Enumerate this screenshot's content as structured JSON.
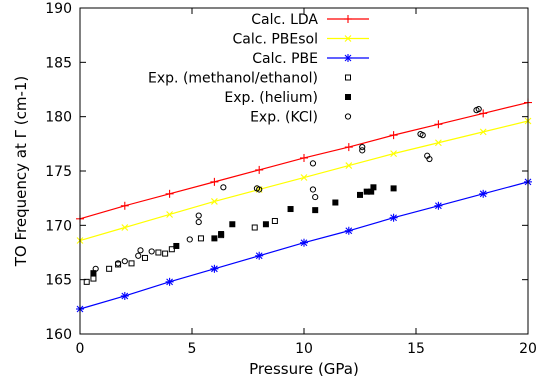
{
  "chart_data": {
    "type": "scatter",
    "xlabel": "Pressure (GPa)",
    "ylabel": "TO Frequency at Γ (cm-1)",
    "xlim": [
      0,
      20
    ],
    "ylim": [
      160,
      190
    ],
    "xticks": [
      0,
      5,
      10,
      15,
      20
    ],
    "yticks": [
      160,
      165,
      170,
      175,
      180,
      185,
      190
    ],
    "grid": false,
    "legend_position": "top-center",
    "series": [
      {
        "name": "Calc. LDA",
        "kind": "line",
        "marker": "plus",
        "color": "#ff0000",
        "x": [
          0,
          2,
          4,
          6,
          8,
          10,
          12,
          14,
          16,
          18,
          20
        ],
        "y": [
          170.6,
          171.8,
          172.9,
          174.0,
          175.1,
          176.2,
          177.2,
          178.3,
          179.3,
          180.3,
          181.3
        ]
      },
      {
        "name": "Calc. PBEsol",
        "kind": "line",
        "marker": "cross",
        "color": "#ffff00",
        "x": [
          0,
          2,
          4,
          6,
          8,
          10,
          12,
          14,
          16,
          18,
          20
        ],
        "y": [
          168.6,
          169.8,
          171.0,
          172.2,
          173.3,
          174.4,
          175.5,
          176.6,
          177.6,
          178.6,
          179.6
        ]
      },
      {
        "name": "Calc. PBE",
        "kind": "line",
        "marker": "star",
        "color": "#0000ff",
        "x": [
          0,
          2,
          4,
          6,
          8,
          10,
          12,
          14,
          16,
          18,
          20
        ],
        "y": [
          162.3,
          163.5,
          164.8,
          166.0,
          167.2,
          168.4,
          169.5,
          170.7,
          171.8,
          172.9,
          174.0
        ]
      },
      {
        "name": "Exp. (methanol/ethanol)",
        "kind": "points",
        "marker": "open-square",
        "color": "#000000",
        "x": [
          0.3,
          0.6,
          1.3,
          1.7,
          2.3,
          2.9,
          3.5,
          3.8,
          4.1,
          5.4,
          6.3,
          7.8,
          8.7
        ],
        "y": [
          164.8,
          165.1,
          166.0,
          166.4,
          166.5,
          167.0,
          167.5,
          167.4,
          167.8,
          168.8,
          169.1,
          169.8,
          170.4
        ]
      },
      {
        "name": "Exp. (helium)",
        "kind": "points",
        "marker": "filled-square",
        "color": "#000000",
        "x": [
          0.6,
          4.3,
          6.0,
          6.3,
          6.8,
          8.3,
          9.4,
          10.5,
          11.4,
          12.5,
          12.8,
          13.0,
          13.1,
          14.0
        ],
        "y": [
          165.6,
          168.1,
          168.8,
          169.2,
          170.1,
          170.1,
          171.5,
          171.4,
          172.1,
          172.8,
          173.1,
          173.1,
          173.5,
          173.4
        ]
      },
      {
        "name": "Exp. (KCl)",
        "kind": "points",
        "marker": "open-circle",
        "color": "#000000",
        "x": [
          0.7,
          1.7,
          2.0,
          2.6,
          2.7,
          3.2,
          4.9,
          5.3,
          5.3,
          6.4,
          7.9,
          8.0,
          10.4,
          10.4,
          10.5,
          12.6,
          12.6,
          15.2,
          15.3,
          15.5,
          15.6,
          17.7,
          17.8
        ],
        "y": [
          166.0,
          166.5,
          166.7,
          167.2,
          167.7,
          167.6,
          168.7,
          170.3,
          170.9,
          173.5,
          173.4,
          173.3,
          175.7,
          173.3,
          172.6,
          176.9,
          177.2,
          178.4,
          178.3,
          176.4,
          176.1,
          180.6,
          180.7
        ]
      }
    ]
  }
}
